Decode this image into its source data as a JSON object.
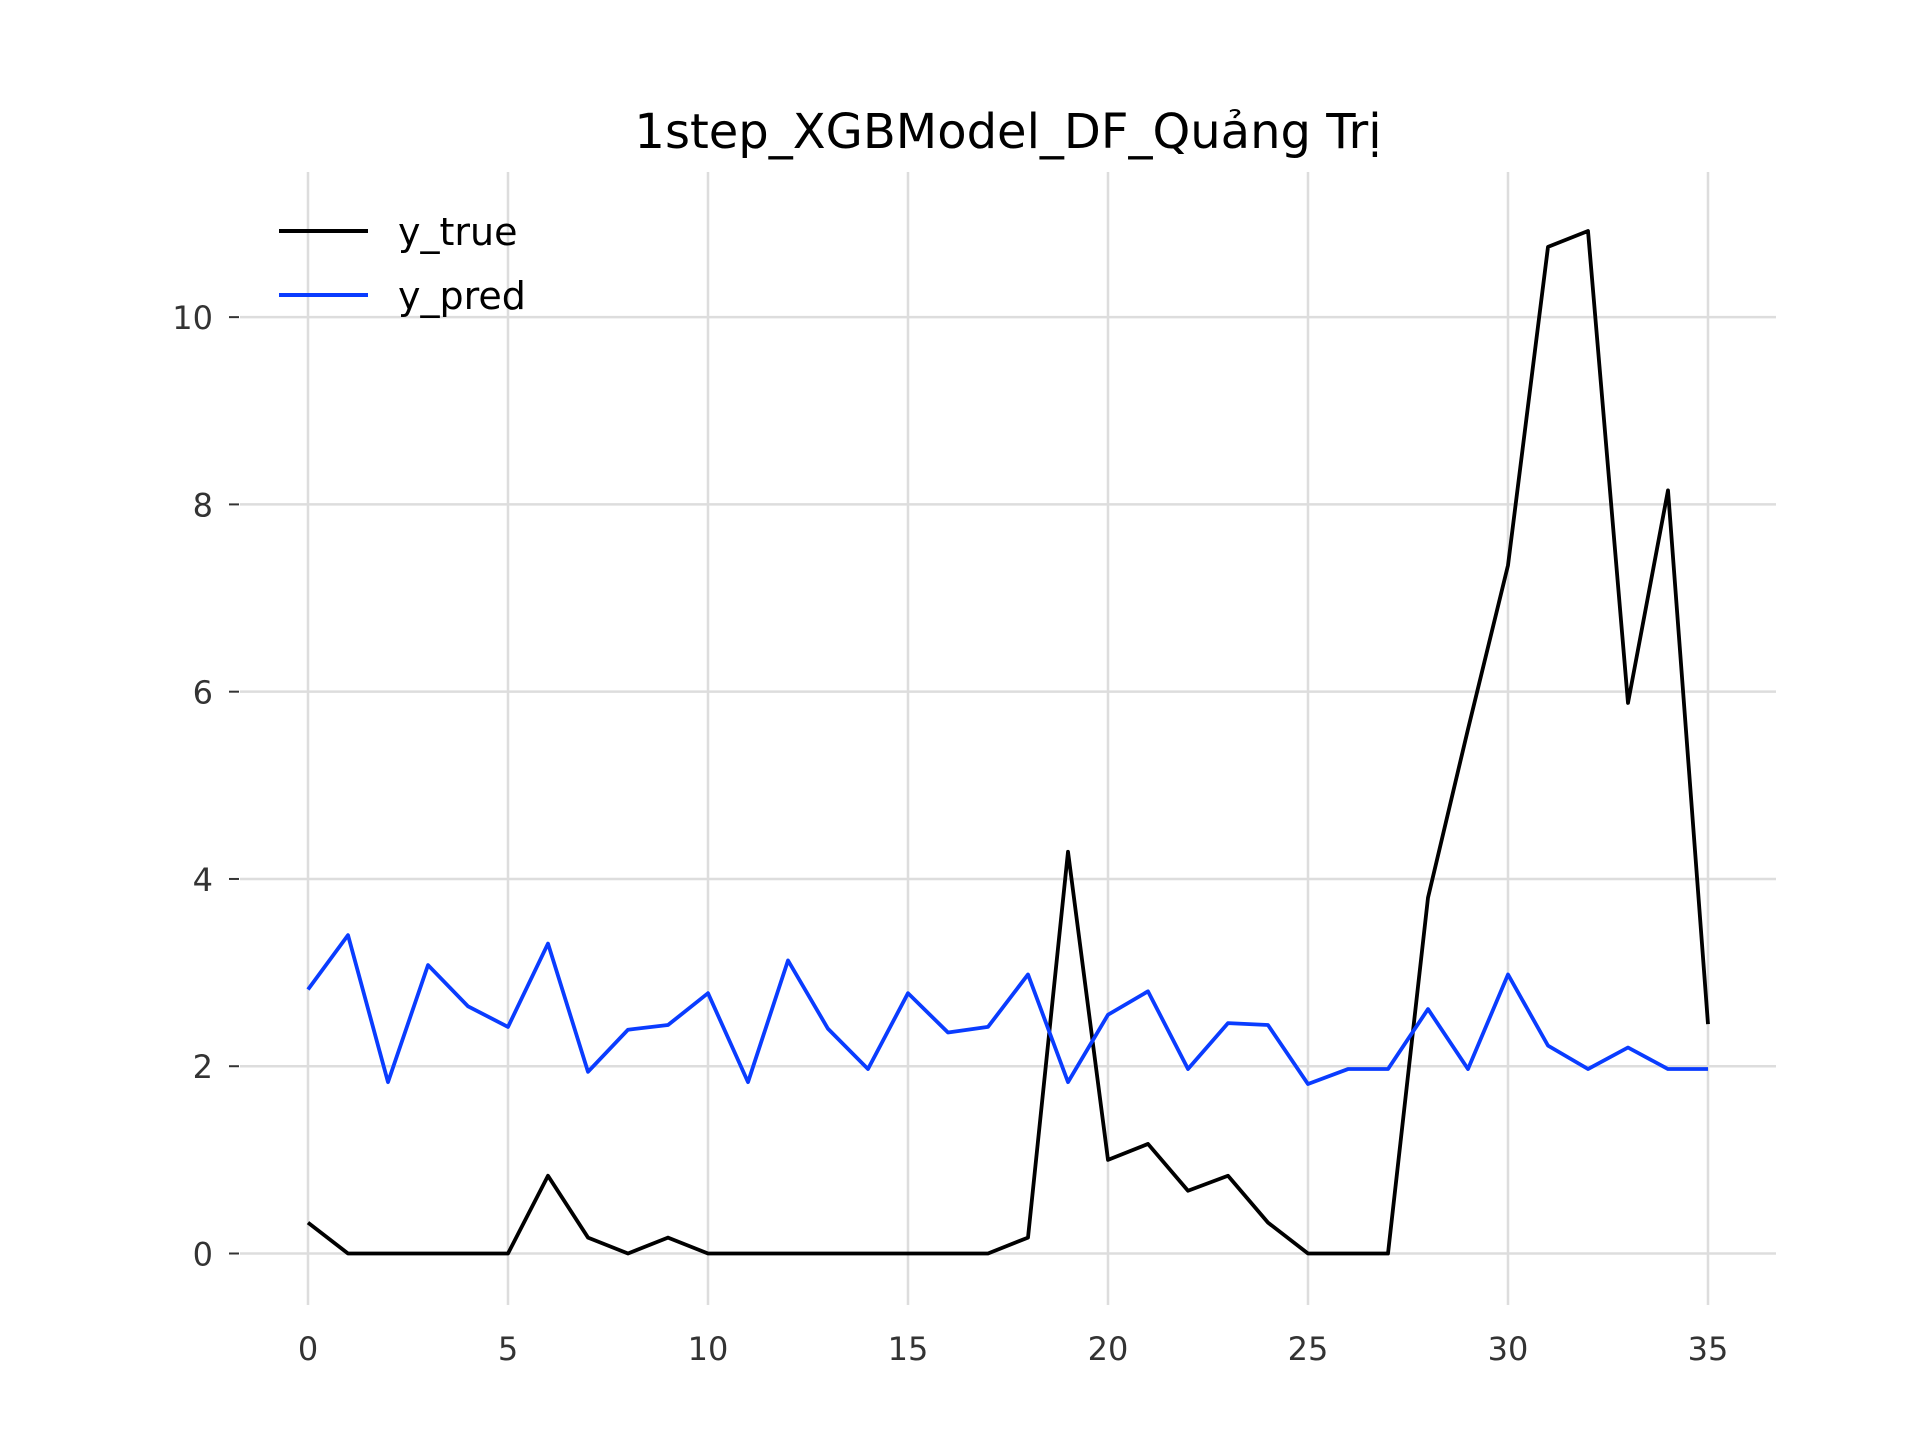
{
  "chart_data": {
    "type": "line",
    "title": "1step_XGBModel_DF_Quảng Trị",
    "xlabel": "",
    "ylabel": "",
    "xlim": [
      -1.7,
      36.7
    ],
    "ylim": [
      -0.55,
      11.55
    ],
    "x_ticks": [
      0,
      5,
      10,
      15,
      20,
      25,
      30,
      35
    ],
    "y_ticks": [
      0,
      2,
      4,
      6,
      8,
      10
    ],
    "grid": true,
    "legend_position": "top-left",
    "series": [
      {
        "name": "y_true",
        "color": "#000000",
        "x": [
          0,
          1,
          2,
          3,
          4,
          5,
          6,
          7,
          8,
          9,
          10,
          11,
          12,
          13,
          14,
          15,
          16,
          17,
          18,
          19,
          20,
          21,
          22,
          23,
          24,
          25,
          26,
          27,
          28,
          29,
          30,
          31,
          32,
          33,
          34,
          35
        ],
        "values": [
          0.33,
          0,
          0,
          0,
          0,
          0,
          0.83,
          0.17,
          0,
          0.17,
          0,
          0,
          0,
          0,
          0,
          0,
          0,
          0,
          0.17,
          4.29,
          1,
          1.17,
          0.67,
          0.83,
          0.33,
          0,
          0,
          0,
          3.8,
          5.6,
          7.35,
          10.75,
          10.92,
          5.88,
          8.15,
          2.45
        ]
      },
      {
        "name": "y_pred",
        "color": "#0a3cff",
        "x": [
          0,
          1,
          2,
          3,
          4,
          5,
          6,
          7,
          8,
          9,
          10,
          11,
          12,
          13,
          14,
          15,
          16,
          17,
          18,
          19,
          20,
          21,
          22,
          23,
          24,
          25,
          26,
          27,
          28,
          29,
          30,
          31,
          32,
          33,
          34,
          35
        ],
        "values": [
          2.82,
          3.4,
          1.83,
          3.08,
          2.64,
          2.42,
          3.31,
          1.94,
          2.39,
          2.44,
          2.78,
          1.83,
          3.13,
          2.4,
          1.97,
          2.78,
          2.36,
          2.42,
          2.98,
          1.83,
          2.55,
          2.8,
          1.97,
          2.46,
          2.44,
          1.81,
          1.97,
          1.97,
          2.61,
          1.97,
          2.98,
          2.22,
          1.97,
          2.2,
          1.97,
          1.97
        ]
      }
    ]
  }
}
